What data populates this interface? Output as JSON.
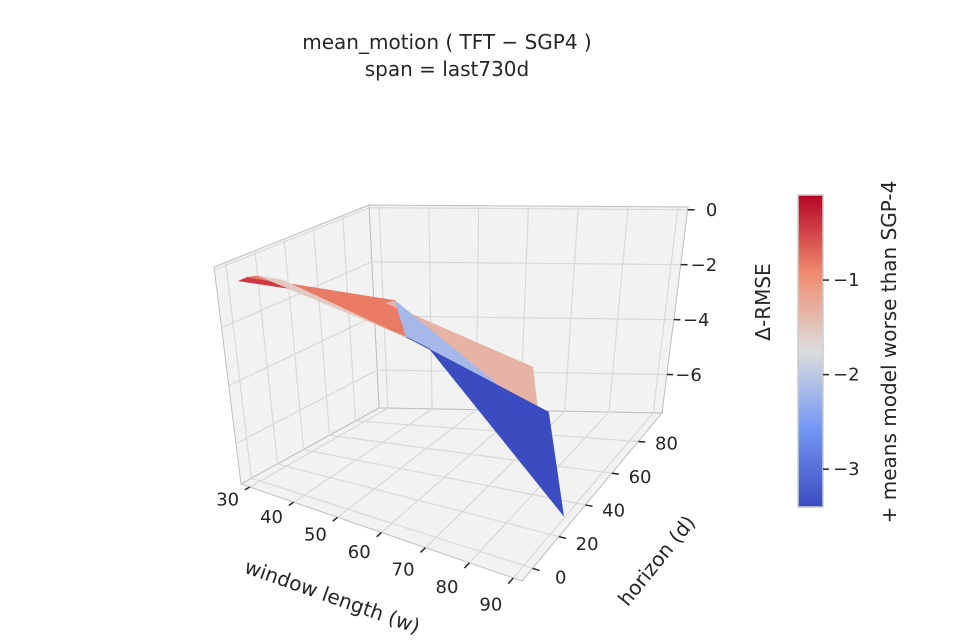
{
  "chart_data": {
    "type": "surface3d",
    "title": "mean_motion  ( TFT − SGP4 )",
    "subtitle": "span = last730d",
    "xlabel": "window length (w)",
    "ylabel": "horizon (d)",
    "zlabel": "Δ-RMSE",
    "colorbar_label": "+ means model worse than SGP-4",
    "colormap": "coolwarm",
    "x_ticks": [
      "30",
      "40",
      "50",
      "60",
      "70",
      "80",
      "90"
    ],
    "y_ticks": [
      "0",
      "20",
      "40",
      "60",
      "80"
    ],
    "z_ticks": [
      "0",
      "−2",
      "−4",
      "−6"
    ],
    "colorbar_ticks": [
      "−1",
      "−2",
      "−3"
    ],
    "xlim": [
      28,
      92
    ],
    "ylim": [
      -8,
      98
    ],
    "zlim": [
      -7.4,
      0.1
    ],
    "color_range": [
      -3.4,
      -0.1
    ],
    "windows": [
      30,
      60,
      90
    ],
    "horizons": [
      1,
      7,
      14,
      30
    ],
    "delta_rmse": [
      [
        -0.5,
        -0.5,
        -0.6,
        -1.1
      ],
      [
        -0.3,
        -0.4,
        -1.8,
        -2.7
      ],
      [
        -1.4,
        -3.2,
        -3.3,
        -7.3
      ]
    ]
  },
  "colors": {
    "pane": "#f2f2f2",
    "grid": "#d9d9d9",
    "edge": "#bfbfbf"
  }
}
